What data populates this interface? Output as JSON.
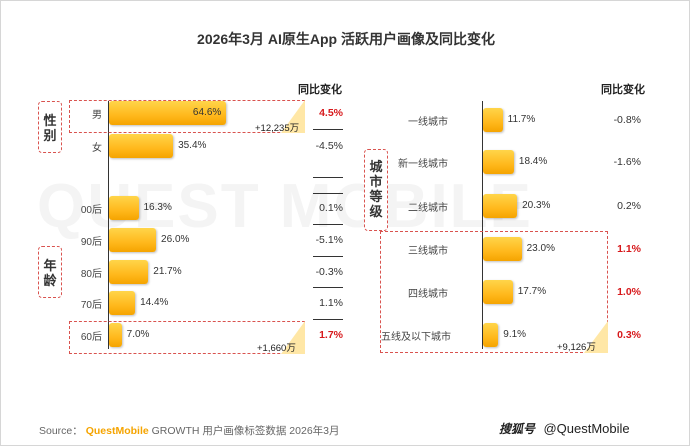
{
  "title": "2026年3月 AI原生App 活跃用户画像及同比变化",
  "yoy_header": "同比变化",
  "background_watermark": "QUEST MOBILE",
  "source": {
    "prefix": "Source：",
    "brand": "QuestMobile",
    "rest": "GROWTH 用户画像标签数据 2026年3月"
  },
  "watermark": {
    "logo": "搜狐号",
    "handle": "@QuestMobile"
  },
  "colors": {
    "bar": "#ffb81c",
    "highlight_red": "#d7191c",
    "dashed_border": "#d9534f",
    "corner_triangle": "#ffe7a6"
  },
  "chart_data": [
    {
      "type": "bar",
      "orientation": "horizontal",
      "groups": [
        {
          "label": "性别",
          "categories": [
            "男",
            "女"
          ]
        },
        {
          "label": "年龄",
          "categories": [
            "00后",
            "90后",
            "80后",
            "70后",
            "60后"
          ]
        }
      ],
      "categories": [
        "男",
        "女",
        "00后",
        "90后",
        "80后",
        "70后",
        "60后"
      ],
      "values": [
        64.6,
        35.4,
        16.3,
        26.0,
        21.7,
        14.4,
        7.0
      ],
      "value_labels": [
        "64.6%",
        "35.4%",
        "16.3%",
        "26.0%",
        "21.7%",
        "14.4%",
        "7.0%"
      ],
      "unit": "%",
      "yoy_change": [
        "4.5%",
        "-4.5%",
        "",
        "0.1%",
        "-5.1%",
        "-0.3%",
        "1.1%",
        "1.7%"
      ],
      "yoy_list": [
        {
          "category": "男",
          "value": "4.5%",
          "highlight": true
        },
        {
          "category": "女",
          "value": "-4.5%",
          "highlight": false
        },
        {
          "category": "00后",
          "value": "0.1%",
          "highlight": false
        },
        {
          "category": "90后",
          "value": "-5.1%",
          "highlight": false
        },
        {
          "category": "80后",
          "value": "-0.3%",
          "highlight": false
        },
        {
          "category": "70后",
          "value": "1.1%",
          "highlight": false
        },
        {
          "category": "60后",
          "value": "1.7%",
          "highlight": true
        }
      ],
      "annotations": [
        {
          "category": "男",
          "text": "+12,235万"
        },
        {
          "category": "60后",
          "text": "+1,660万"
        }
      ]
    },
    {
      "type": "bar",
      "orientation": "horizontal",
      "groups": [
        {
          "label": "城市等级",
          "categories": [
            "一线城市",
            "新一线城市",
            "二线城市",
            "三线城市",
            "四线城市",
            "五线及以下城市"
          ]
        }
      ],
      "categories": [
        "一线城市",
        "新一线城市",
        "二线城市",
        "三线城市",
        "四线城市",
        "五线及以下城市"
      ],
      "values": [
        11.7,
        18.4,
        20.3,
        23.0,
        17.7,
        9.1
      ],
      "value_labels": [
        "11.7%",
        "18.4%",
        "20.3%",
        "23.0%",
        "17.7%",
        "9.1%"
      ],
      "unit": "%",
      "yoy_list": [
        {
          "category": "一线城市",
          "value": "-0.8%",
          "highlight": false
        },
        {
          "category": "新一线城市",
          "value": "-1.6%",
          "highlight": false
        },
        {
          "category": "二线城市",
          "value": "0.2%",
          "highlight": false
        },
        {
          "category": "三线城市",
          "value": "1.1%",
          "highlight": true
        },
        {
          "category": "四线城市",
          "value": "1.0%",
          "highlight": true
        },
        {
          "category": "五线及以下城市",
          "value": "0.3%",
          "highlight": true
        }
      ],
      "annotations": [
        {
          "category": "五线及以下城市",
          "text": "+9,126万"
        }
      ]
    }
  ]
}
